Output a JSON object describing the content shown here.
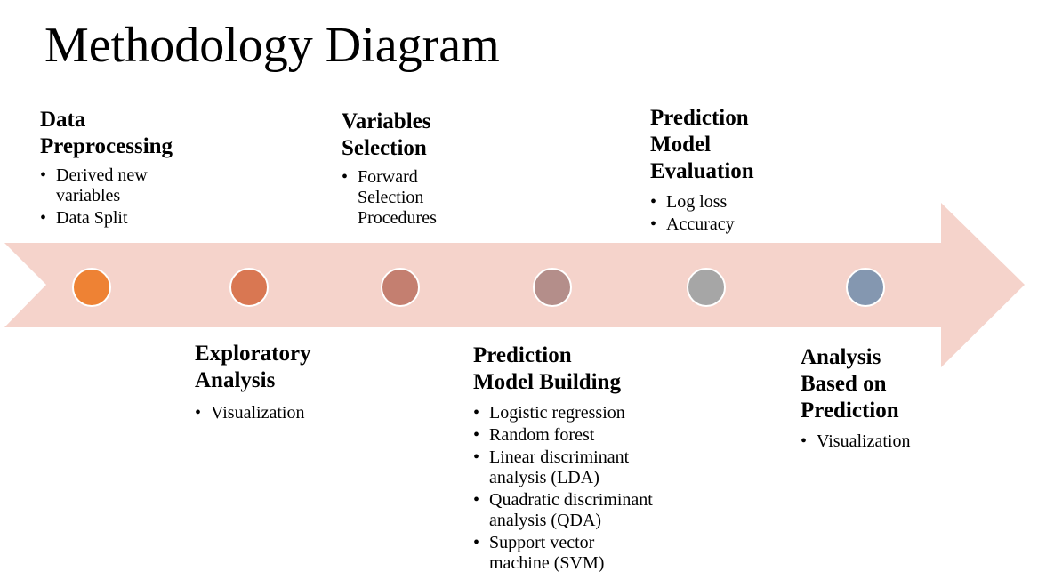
{
  "title": "Methodology Diagram",
  "arrow": {
    "color": "#f5d3cb"
  },
  "steps": [
    {
      "heading_lines": [
        "Data",
        "Preprocessing"
      ],
      "bullets": [
        "Derived new variables",
        "Data Split"
      ],
      "dot_color": "#ee8234"
    },
    {
      "heading_lines": [
        "Exploratory",
        "Analysis"
      ],
      "bullets": [
        "Visualization"
      ],
      "dot_color": "#d97752"
    },
    {
      "heading_lines": [
        "Variables",
        "Selection"
      ],
      "bullets": [
        "Forward Selection Procedures"
      ],
      "dot_color": "#c47f70"
    },
    {
      "heading_lines": [
        "Prediction",
        "Model Building"
      ],
      "bullets": [
        "Logistic regression",
        "Random forest",
        "Linear discriminant analysis (LDA)",
        "Quadratic discriminant analysis (QDA)",
        "Support vector machine (SVM)"
      ],
      "dot_color": "#b48e8a"
    },
    {
      "heading_lines": [
        "Prediction",
        "Model",
        "Evaluation"
      ],
      "bullets": [
        "Log loss",
        "Accuracy"
      ],
      "dot_color": "#a6a6a6"
    },
    {
      "heading_lines": [
        "Analysis",
        "Based on",
        "Prediction"
      ],
      "bullets": [
        "Visualization"
      ],
      "dot_color": "#8497b0"
    }
  ]
}
